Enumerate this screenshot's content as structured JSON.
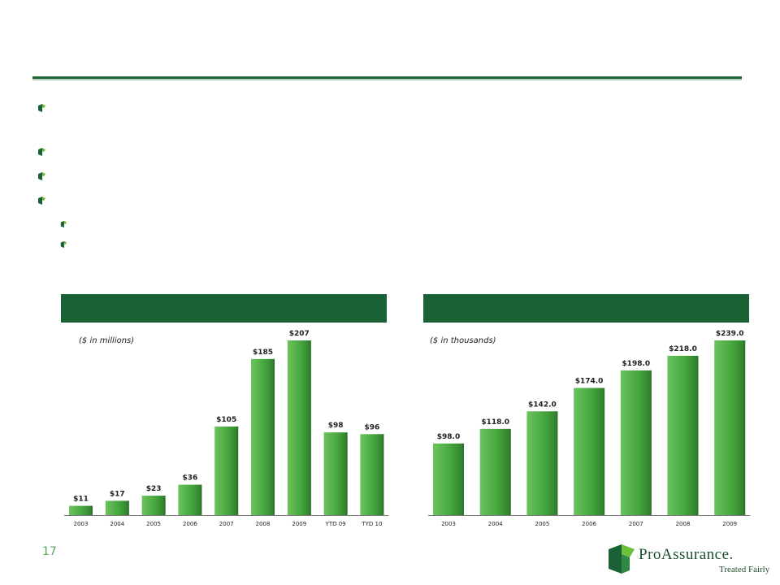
{
  "slide": {
    "page_number": "17",
    "brand_name": "ProAssurance.",
    "brand_tagline": "Treated Fairly",
    "accent_color": "#1a6236",
    "bar_color": "#46a83e"
  },
  "bullets": {
    "level1_count": 4,
    "level2_count": 2
  },
  "chart_data": [
    {
      "type": "bar",
      "title": "",
      "note": "($ in millions)",
      "categories": [
        "2003",
        "2004",
        "2005",
        "2006",
        "2007",
        "2008",
        "2009",
        "YTD 09",
        "TYD 10"
      ],
      "values": [
        11,
        17,
        23,
        36,
        105,
        185,
        207,
        98,
        96
      ],
      "value_labels": [
        "$11",
        "$17",
        "$23",
        "$36",
        "$105",
        "$185",
        "$207",
        "$98",
        "$96"
      ],
      "ylim": [
        0,
        207
      ],
      "grid": false,
      "legend": "none"
    },
    {
      "type": "bar",
      "title": "",
      "note": "($ in thousands)",
      "categories": [
        "2003",
        "2004",
        "2005",
        "2006",
        "2007",
        "2008",
        "2009"
      ],
      "values": [
        98.0,
        118.0,
        142.0,
        174.0,
        198.0,
        218.0,
        239.0
      ],
      "value_labels": [
        "$98.0",
        "$118.0",
        "$142.0",
        "$174.0",
        "$198.0",
        "$218.0",
        "$239.0"
      ],
      "ylim": [
        0,
        239
      ],
      "grid": false,
      "legend": "none"
    }
  ]
}
